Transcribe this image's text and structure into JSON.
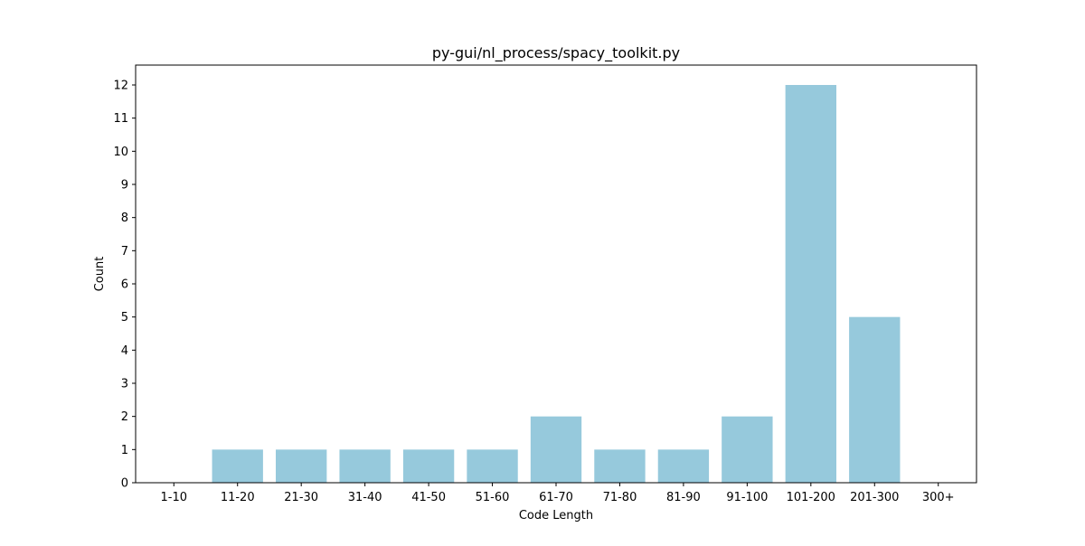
{
  "chart_data": {
    "type": "bar",
    "title": "py-gui/nl_process/spacy_toolkit.py",
    "xlabel": "Code Length",
    "ylabel": "Count",
    "categories": [
      "1-10",
      "11-20",
      "21-30",
      "31-40",
      "41-50",
      "51-60",
      "61-70",
      "71-80",
      "81-90",
      "91-100",
      "101-200",
      "201-300",
      "300+"
    ],
    "values": [
      0,
      1,
      1,
      1,
      1,
      1,
      2,
      1,
      1,
      2,
      12,
      5,
      0
    ],
    "ylim": [
      0,
      12.6
    ],
    "yticks": [
      "0",
      "1",
      "2",
      "3",
      "4",
      "5",
      "6",
      "7",
      "8",
      "9",
      "10",
      "11",
      "12"
    ],
    "grid": false,
    "bar_color": "#96c9dc"
  }
}
